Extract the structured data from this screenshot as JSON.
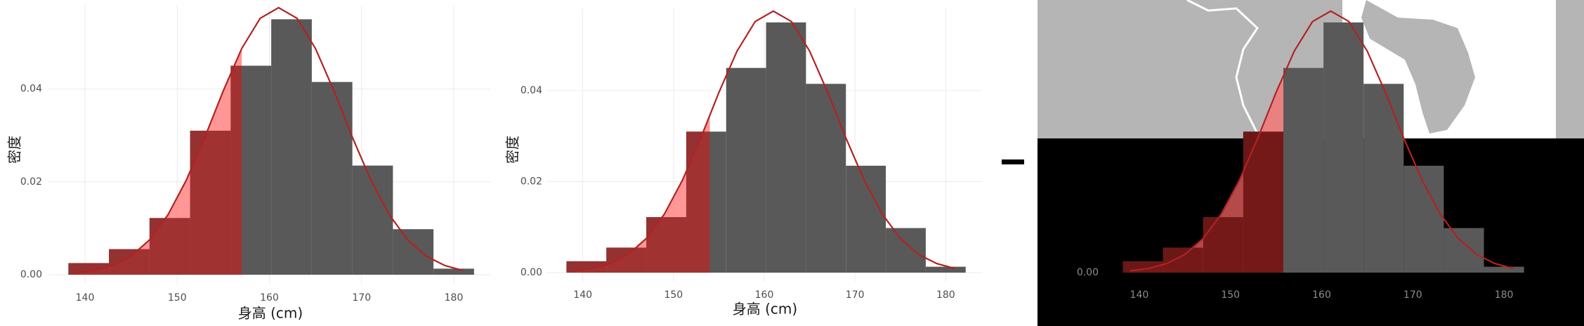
{
  "chart_data": [
    {
      "type": "histogram",
      "xlabel": "身高 (cm)",
      "ylabel": "密度",
      "bins": [
        138.2,
        142.6,
        147.0,
        151.4,
        155.8,
        160.2,
        164.6,
        169.0,
        173.4,
        177.8,
        182.2
      ],
      "values": [
        0.0025,
        0.0055,
        0.0122,
        0.031,
        0.045,
        0.055,
        0.0415,
        0.0235,
        0.0098,
        0.0013
      ],
      "curve": {
        "x": [
          139,
          141,
          143,
          145,
          147,
          149,
          151,
          153,
          155,
          157,
          159,
          161,
          163,
          165,
          167,
          169,
          171,
          173,
          175,
          177,
          179,
          181
        ],
        "y": [
          0.0004,
          0.0009,
          0.002,
          0.004,
          0.0075,
          0.0129,
          0.0204,
          0.0296,
          0.0396,
          0.0487,
          0.0552,
          0.0575,
          0.0552,
          0.0487,
          0.0396,
          0.0296,
          0.0204,
          0.0129,
          0.0075,
          0.004,
          0.002,
          0.0009
        ]
      },
      "shade_below": 157,
      "xlim": [
        136,
        184
      ],
      "ylim": [
        -0.002,
        0.058
      ],
      "xticks": [
        140,
        150,
        160,
        170,
        180
      ],
      "yticks": [
        {
          "value": 0,
          "label": "0.00"
        },
        {
          "value": 0.02,
          "label": "0.02"
        },
        {
          "value": 0.04,
          "label": "0.04"
        }
      ],
      "grid": true,
      "bar_color": "#595959",
      "curve_color": "#b22222",
      "shade_color": "#ff6b6b",
      "shade_bar_color": "#9b2c2c"
    },
    {
      "type": "histogram",
      "xlabel": "身高 (cm)",
      "ylabel": "密度",
      "bins": [
        138.2,
        142.6,
        147.0,
        151.4,
        155.8,
        160.2,
        164.6,
        169.0,
        173.4,
        177.8,
        182.2
      ],
      "values": [
        0.0025,
        0.0055,
        0.0122,
        0.031,
        0.045,
        0.055,
        0.0415,
        0.0235,
        0.0098,
        0.0013
      ],
      "curve": {
        "x": [
          139,
          141,
          143,
          145,
          147,
          149,
          151,
          153,
          155,
          157,
          159,
          161,
          163,
          165,
          167,
          169,
          171,
          173,
          175,
          177,
          179,
          181
        ],
        "y": [
          0.0004,
          0.0009,
          0.002,
          0.004,
          0.0075,
          0.0129,
          0.0204,
          0.0296,
          0.0396,
          0.0487,
          0.0552,
          0.0575,
          0.0552,
          0.0487,
          0.0396,
          0.0296,
          0.0204,
          0.0129,
          0.0075,
          0.004,
          0.002,
          0.0009
        ]
      },
      "shade_below": 154,
      "xlim": [
        136,
        184
      ],
      "ylim": [
        -0.002,
        0.058
      ],
      "xticks": [
        140,
        150,
        160,
        170,
        180
      ],
      "yticks": [
        {
          "value": 0,
          "label": "0.00"
        },
        {
          "value": 0.02,
          "label": "0.02"
        },
        {
          "value": 0.04,
          "label": "0.04"
        }
      ],
      "grid": true,
      "bar_color": "#595959",
      "curve_color": "#b22222",
      "shade_color": "#ff6b6b",
      "shade_bar_color": "#9b2c2c"
    },
    {
      "type": "histogram",
      "bins": [
        138.2,
        142.6,
        147.0,
        151.4,
        155.8,
        160.2,
        164.6,
        169.0,
        173.4,
        177.8,
        182.2
      ],
      "values": [
        0.0025,
        0.0055,
        0.0122,
        0.031,
        0.045,
        0.055,
        0.0415,
        0.0235,
        0.0098,
        0.0013
      ],
      "curve": {
        "x": [
          139,
          141,
          143,
          145,
          147,
          149,
          151,
          153,
          155,
          157,
          159,
          161,
          163,
          165,
          167,
          169,
          171,
          173,
          175,
          177,
          179,
          181
        ],
        "y": [
          0.0004,
          0.0009,
          0.002,
          0.004,
          0.0075,
          0.0129,
          0.0204,
          0.0296,
          0.0396,
          0.0487,
          0.0552,
          0.0575,
          0.0552,
          0.0487,
          0.0396,
          0.0296,
          0.0204,
          0.0129,
          0.0075,
          0.004,
          0.002,
          0.0009
        ]
      },
      "shade_below": 155.8,
      "xlim": [
        136,
        184
      ],
      "ylim": [
        -0.002,
        0.058
      ],
      "xticks": [
        140,
        150,
        160,
        170,
        180
      ],
      "yticks": [
        {
          "value": 0,
          "label": "0.00"
        }
      ],
      "grid": false,
      "bar_color": "#595959",
      "curve_color": "#b22222",
      "shade_color": "#ff6b6b",
      "shade_bar_color": "#6b0f0f"
    }
  ]
}
